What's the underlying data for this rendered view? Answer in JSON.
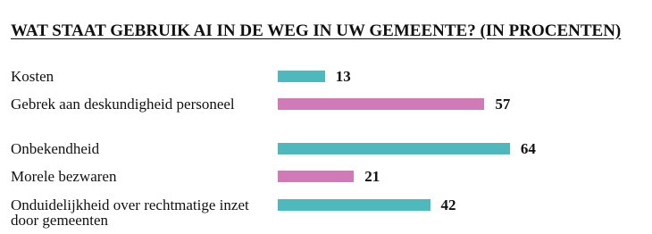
{
  "chart_data": {
    "type": "hbar",
    "title": "WAT STAAT GEBRUIK AI IN DE WEG IN UW GEMEENTE? (IN PROCENTEN)",
    "categories": [
      "Kosten",
      "Gebrek aan deskundigheid personeel",
      "Onbekendheid",
      "Morele bezwaren",
      "Onduidelijkheid over rechtmatige inzet door gemeenten"
    ],
    "values": [
      13,
      57,
      64,
      21,
      42
    ],
    "colors": [
      "#4fb8bd",
      "#d07bb8",
      "#4fb8bd",
      "#d07bb8",
      "#4fb8bd"
    ]
  }
}
